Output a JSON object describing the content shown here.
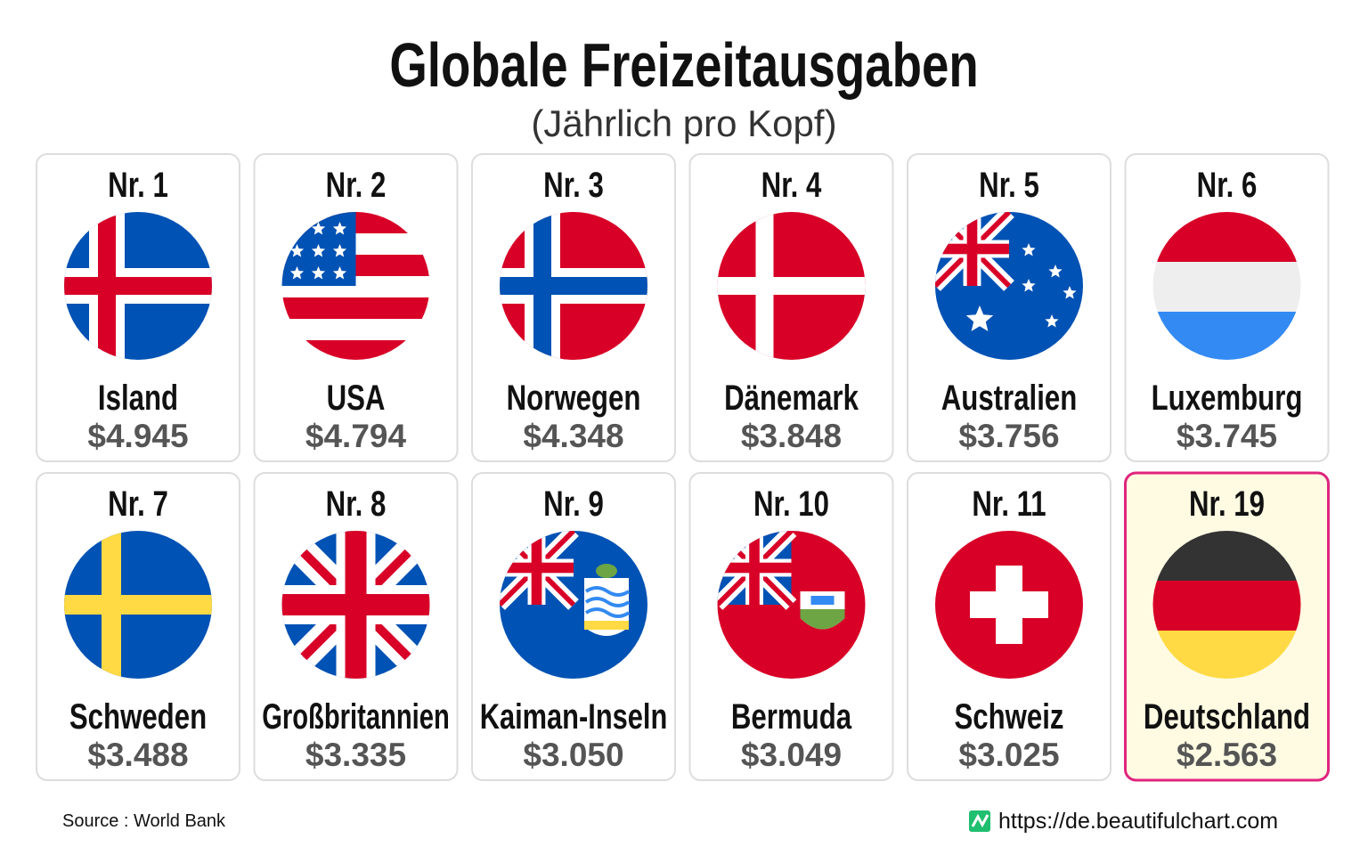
{
  "header": {
    "title": "Globale Freizeitausgaben",
    "subtitle": "(Jährlich pro Kopf)"
  },
  "cards": [
    {
      "rank": "Nr. 1",
      "country": "Island",
      "value": "$4.945"
    },
    {
      "rank": "Nr. 2",
      "country": "USA",
      "value": "$4.794"
    },
    {
      "rank": "Nr. 3",
      "country": "Norwegen",
      "value": "$4.348"
    },
    {
      "rank": "Nr. 4",
      "country": "Dänemark",
      "value": "$3.848"
    },
    {
      "rank": "Nr. 5",
      "country": "Australien",
      "value": "$3.756"
    },
    {
      "rank": "Nr. 6",
      "country": "Luxemburg",
      "value": "$3.745"
    },
    {
      "rank": "Nr. 7",
      "country": "Schweden",
      "value": "$3.488"
    },
    {
      "rank": "Nr. 8",
      "country": "Großbritannien",
      "value": "$3.335"
    },
    {
      "rank": "Nr. 9",
      "country": "Kaiman-Inseln",
      "value": "$3.050"
    },
    {
      "rank": "Nr. 10",
      "country": "Bermuda",
      "value": "$3.049"
    },
    {
      "rank": "Nr. 11",
      "country": "Schweiz",
      "value": "$3.025"
    },
    {
      "rank": "Nr. 19",
      "country": "Deutschland",
      "value": "$2.563"
    }
  ],
  "footer": {
    "source": "Source : World Bank",
    "url": "https://de.beautifulchart.com"
  }
}
